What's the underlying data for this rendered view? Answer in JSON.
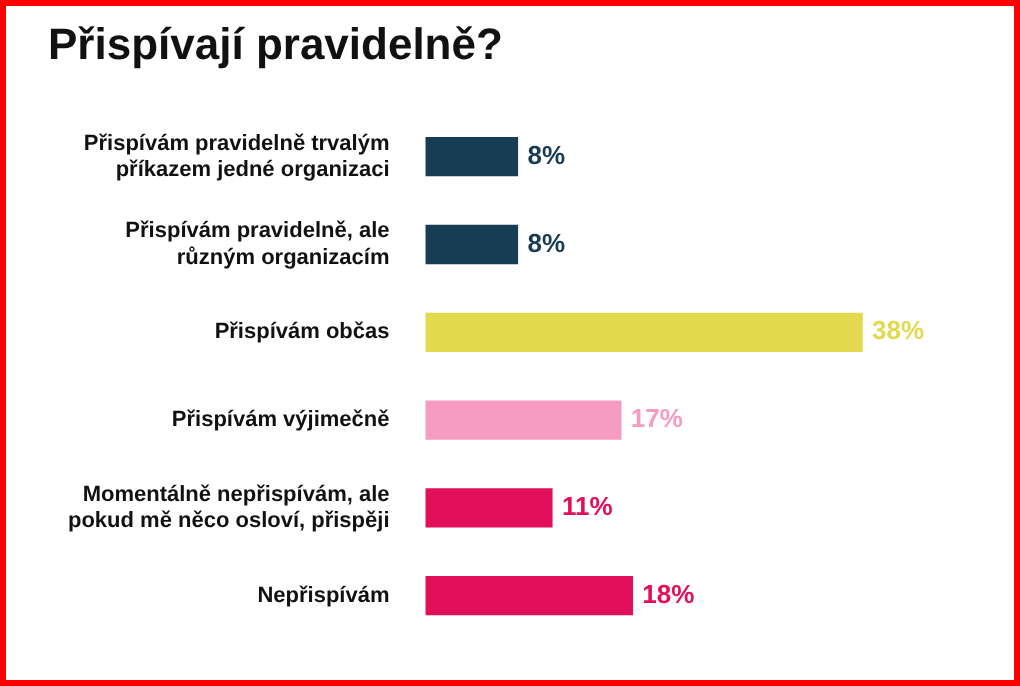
{
  "chart_data": {
    "type": "bar",
    "orientation": "horizontal",
    "title": "Přispívají pravidelně?",
    "categories": [
      "Přispívám pravidelně trvalým příkazem jedné organizaci",
      "Přispívám pravidelně, ale různým organizacím",
      "Přispívám občas",
      "Přispívám výjimečně",
      "Momentálně nepřispívám, ale pokud mě něco osloví, přispěji",
      "Nepřispívám"
    ],
    "values": [
      8,
      8,
      38,
      17,
      11,
      18
    ],
    "value_labels": [
      "8%",
      "8%",
      "38%",
      "17%",
      "11%",
      "18%"
    ],
    "colors": [
      "#163d52",
      "#163d52",
      "#e3d94f",
      "#f69bc2",
      "#e20f5a",
      "#e20f5a"
    ],
    "legend": false
  }
}
